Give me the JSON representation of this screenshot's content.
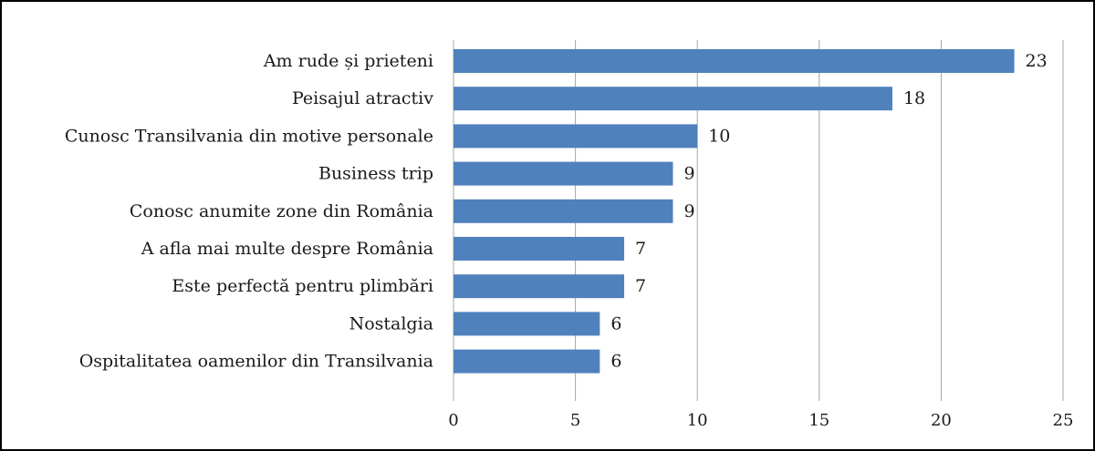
{
  "chart_data": {
    "type": "bar",
    "orientation": "horizontal",
    "title": "",
    "xlabel": "",
    "ylabel": "",
    "categories": [
      "Am rude și prieteni",
      "Peisajul atractiv",
      "Cunosc Transilvania din motive personale",
      "Business trip",
      "Conosc anumite zone din România",
      "A afla mai multe despre România",
      "Este perfectă pentru plimbări",
      "Nostalgia",
      "Ospitalitatea oamenilor din Transilvania"
    ],
    "values": [
      23,
      18,
      10,
      9,
      9,
      7,
      7,
      6,
      6
    ],
    "xlim": [
      0,
      25
    ],
    "ticks": [
      0,
      5,
      10,
      15,
      20,
      25
    ],
    "tick_labels": [
      "0",
      "5",
      "10",
      "15",
      "20",
      "25"
    ],
    "grid": "vertical",
    "data_labels": true,
    "bar_color": "#4f81bd",
    "grid_color": "#a6a6a6"
  }
}
